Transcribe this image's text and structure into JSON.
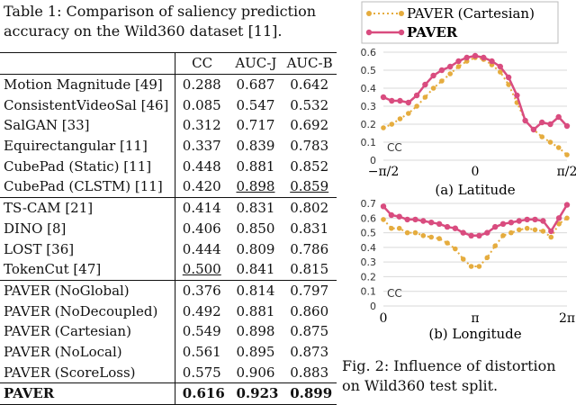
{
  "table": {
    "caption": "Table 1: Comparison of saliency prediction accuracy on the Wild360 dataset [11].",
    "columns": [
      "",
      "CC",
      "AUC-J",
      "AUC-B"
    ],
    "groups": [
      [
        {
          "method": "Motion Magnitude [49]",
          "cc": "0.288",
          "aucj": "0.687",
          "aucb": "0.642"
        },
        {
          "method": "ConsistentVideoSal [46]",
          "cc": "0.085",
          "aucj": "0.547",
          "aucb": "0.532"
        },
        {
          "method": "SalGAN [33]",
          "cc": "0.312",
          "aucj": "0.717",
          "aucb": "0.692"
        },
        {
          "method": "Equirectangular [11]",
          "cc": "0.337",
          "aucj": "0.839",
          "aucb": "0.783"
        },
        {
          "method": "CubePad (Static) [11]",
          "cc": "0.448",
          "aucj": "0.881",
          "aucb": "0.852"
        },
        {
          "method": "CubePad (CLSTM) [11]",
          "cc": "0.420",
          "aucj": "0.898",
          "aucb": "0.859"
        }
      ],
      [
        {
          "method": "TS-CAM [21]",
          "cc": "0.414",
          "aucj": "0.831",
          "aucb": "0.802"
        },
        {
          "method": "DINO [8]",
          "cc": "0.406",
          "aucj": "0.850",
          "aucb": "0.831"
        },
        {
          "method": "LOST [36]",
          "cc": "0.444",
          "aucj": "0.809",
          "aucb": "0.786"
        },
        {
          "method": "TokenCut [47]",
          "cc": "0.500",
          "aucj": "0.841",
          "aucb": "0.815"
        }
      ],
      [
        {
          "method": "PAVER (NoGlobal)",
          "cc": "0.376",
          "aucj": "0.814",
          "aucb": "0.797"
        },
        {
          "method": "PAVER (NoDecoupled)",
          "cc": "0.492",
          "aucj": "0.881",
          "aucb": "0.860"
        },
        {
          "method": "PAVER (Cartesian)",
          "cc": "0.549",
          "aucj": "0.898",
          "aucb": "0.875"
        },
        {
          "method": "PAVER (NoLocal)",
          "cc": "0.561",
          "aucj": "0.895",
          "aucb": "0.873"
        },
        {
          "method": "PAVER (ScoreLoss)",
          "cc": "0.575",
          "aucj": "0.906",
          "aucb": "0.883"
        }
      ]
    ],
    "final": {
      "method": "PAVER",
      "cc": "0.616",
      "aucj": "0.923",
      "aucb": "0.899"
    }
  },
  "figure": {
    "legend": [
      "PAVER (Cartesian)",
      "PAVER"
    ],
    "colors": {
      "cartesian": "#e5ac3e",
      "paver": "#d94c7f"
    },
    "caption": "Fig. 2: Influence of distortion on Wild360 test split."
  },
  "chart_data": [
    {
      "type": "line",
      "title": "(a) Latitude",
      "ylabel": "CC",
      "ylim": [
        0,
        0.6
      ],
      "yticks": [
        "0",
        "0.1",
        "0.2",
        "0.3",
        "0.4",
        "0.5",
        "0.6"
      ],
      "xticks": [
        "−π/2",
        "0",
        "π/2"
      ],
      "series": [
        {
          "name": "PAVER (Cartesian)",
          "values": [
            0.18,
            0.2,
            0.23,
            0.26,
            0.3,
            0.35,
            0.4,
            0.44,
            0.48,
            0.52,
            0.55,
            0.57,
            0.56,
            0.53,
            0.49,
            0.42,
            0.32,
            0.22,
            0.17,
            0.13,
            0.1,
            0.07,
            0.03
          ]
        },
        {
          "name": "PAVER",
          "values": [
            0.35,
            0.33,
            0.33,
            0.32,
            0.36,
            0.42,
            0.47,
            0.5,
            0.52,
            0.55,
            0.57,
            0.58,
            0.57,
            0.55,
            0.52,
            0.46,
            0.36,
            0.22,
            0.17,
            0.21,
            0.2,
            0.24,
            0.19
          ]
        }
      ]
    },
    {
      "type": "line",
      "title": "(b) Longitude",
      "ylabel": "CC",
      "ylim": [
        0,
        0.7
      ],
      "yticks": [
        "0",
        "0.1",
        "0.2",
        "0.3",
        "0.4",
        "0.5",
        "0.6",
        "0.7"
      ],
      "xticks": [
        "0",
        "π",
        "2π"
      ],
      "series": [
        {
          "name": "PAVER (Cartesian)",
          "values": [
            0.59,
            0.53,
            0.53,
            0.5,
            0.5,
            0.48,
            0.47,
            0.46,
            0.43,
            0.39,
            0.32,
            0.27,
            0.27,
            0.33,
            0.41,
            0.48,
            0.5,
            0.52,
            0.53,
            0.52,
            0.51,
            0.47,
            0.56,
            0.6
          ]
        },
        {
          "name": "PAVER",
          "values": [
            0.68,
            0.62,
            0.61,
            0.59,
            0.59,
            0.58,
            0.57,
            0.56,
            0.54,
            0.53,
            0.5,
            0.48,
            0.48,
            0.5,
            0.54,
            0.56,
            0.57,
            0.58,
            0.59,
            0.59,
            0.58,
            0.51,
            0.6,
            0.69
          ]
        }
      ]
    }
  ]
}
